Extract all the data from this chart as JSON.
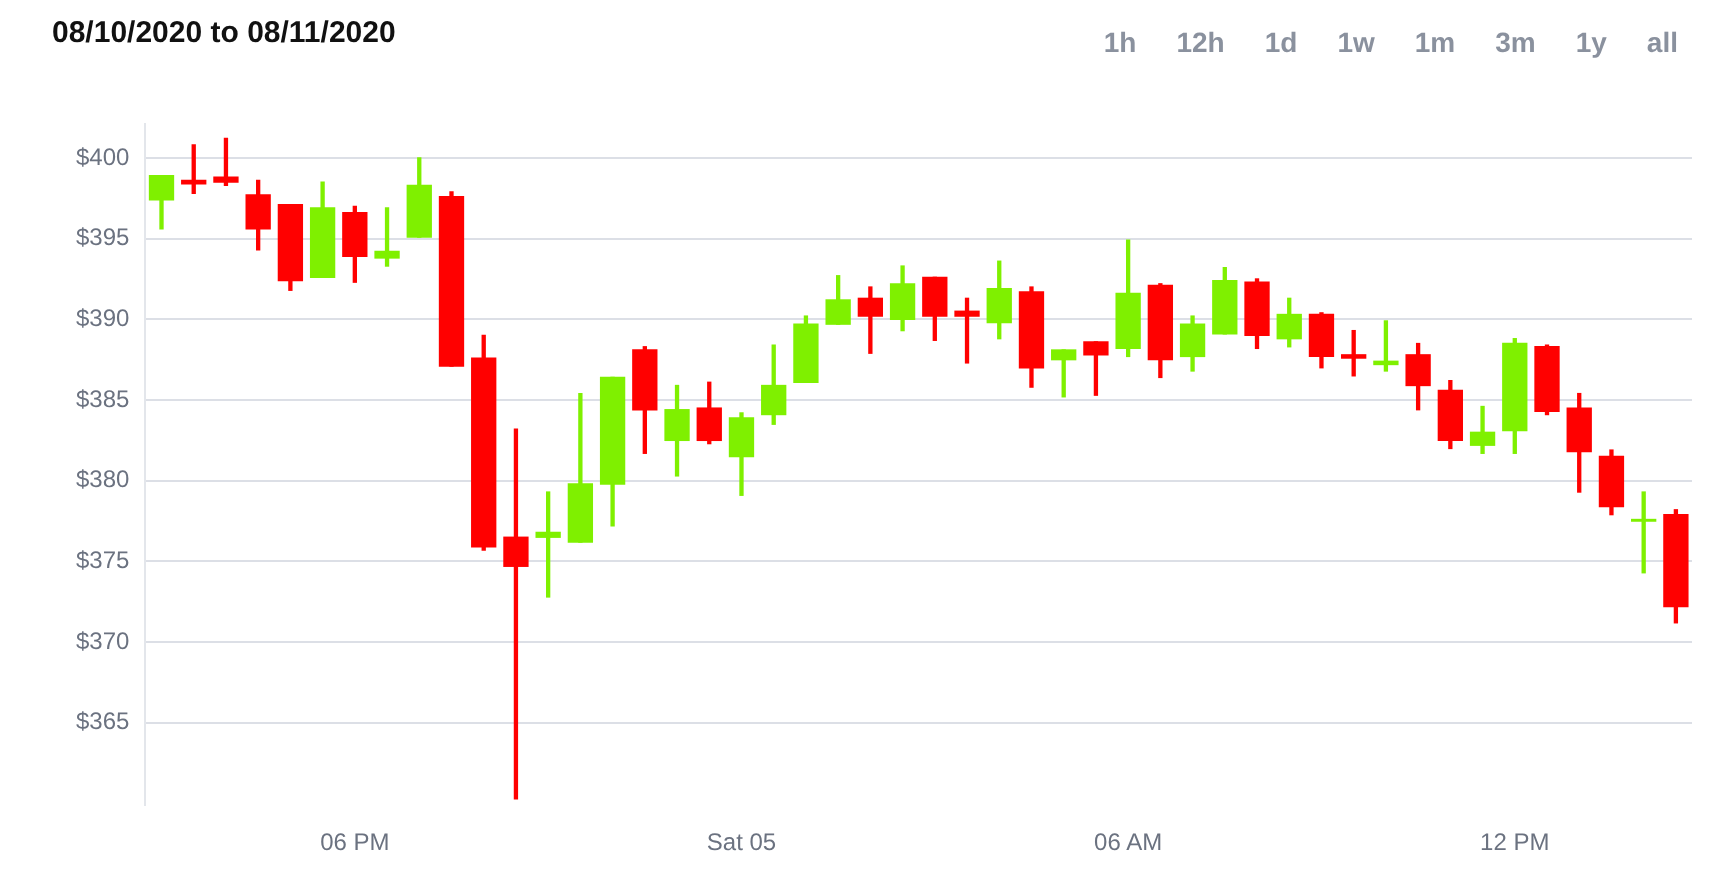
{
  "chart_data": {
    "type": "candlestick",
    "title": "08/10/2020 to 08/11/2020",
    "annotations": [
      "1h",
      "12h",
      "1d",
      "1w",
      "1m",
      "3m",
      "1y",
      "all"
    ],
    "categories": [
      null,
      null,
      null,
      null,
      null,
      null,
      "06 PM",
      null,
      null,
      null,
      null,
      null,
      null,
      null,
      null,
      null,
      null,
      null,
      "Sat 05",
      null,
      null,
      null,
      null,
      null,
      null,
      null,
      null,
      null,
      null,
      null,
      "06 AM",
      null,
      null,
      null,
      null,
      null,
      null,
      null,
      null,
      null,
      null,
      null,
      "12 PM",
      null,
      null,
      null,
      null,
      null
    ],
    "ohlc": [
      [
        397.4,
        398.9,
        395.6,
        398.9
      ],
      [
        398.6,
        400.8,
        397.8,
        398.4
      ],
      [
        398.8,
        401.2,
        398.3,
        398.5
      ],
      [
        397.7,
        398.6,
        394.3,
        395.6
      ],
      [
        397.1,
        397.1,
        391.8,
        392.4
      ],
      [
        392.6,
        398.5,
        392.6,
        396.9
      ],
      [
        396.6,
        397.0,
        392.3,
        393.9
      ],
      [
        393.8,
        396.9,
        393.3,
        394.2
      ],
      [
        395.1,
        400.0,
        395.1,
        398.3
      ],
      [
        397.6,
        397.9,
        387.1,
        387.1
      ],
      [
        387.6,
        389.0,
        375.7,
        375.9
      ],
      [
        376.5,
        383.2,
        360.3,
        374.7
      ],
      [
        376.5,
        379.3,
        372.8,
        376.8
      ],
      [
        376.2,
        385.4,
        376.2,
        379.8
      ],
      [
        379.8,
        386.4,
        377.2,
        386.4
      ],
      [
        388.1,
        388.3,
        381.7,
        384.4
      ],
      [
        382.5,
        385.9,
        380.3,
        384.4
      ],
      [
        384.5,
        386.1,
        382.3,
        382.5
      ],
      [
        381.5,
        384.2,
        379.1,
        383.9
      ],
      [
        384.1,
        388.4,
        383.5,
        385.9
      ],
      [
        386.1,
        390.2,
        386.1,
        389.7
      ],
      [
        389.7,
        392.7,
        389.7,
        391.2
      ],
      [
        391.3,
        392.0,
        387.9,
        390.2
      ],
      [
        390.0,
        393.3,
        389.3,
        392.2
      ],
      [
        392.6,
        392.6,
        388.7,
        390.2
      ],
      [
        390.5,
        391.3,
        387.3,
        390.2
      ],
      [
        389.8,
        393.6,
        388.8,
        391.9
      ],
      [
        391.7,
        392.0,
        385.8,
        387.0
      ],
      [
        387.5,
        388.1,
        385.2,
        388.1
      ],
      [
        388.6,
        388.6,
        385.3,
        387.8
      ],
      [
        388.2,
        394.9,
        387.7,
        391.6
      ],
      [
        392.1,
        392.2,
        386.4,
        387.5
      ],
      [
        387.7,
        390.2,
        386.8,
        389.7
      ],
      [
        389.1,
        393.2,
        389.1,
        392.4
      ],
      [
        392.3,
        392.5,
        388.2,
        389.0
      ],
      [
        388.8,
        391.3,
        388.3,
        390.3
      ],
      [
        390.3,
        390.4,
        387.0,
        387.7
      ],
      [
        387.8,
        389.3,
        386.5,
        387.6
      ],
      [
        387.2,
        389.9,
        386.8,
        387.4
      ],
      [
        387.8,
        388.5,
        384.4,
        385.9
      ],
      [
        385.6,
        386.2,
        382.0,
        382.5
      ],
      [
        382.2,
        384.6,
        381.7,
        383.0
      ],
      [
        383.1,
        388.8,
        381.7,
        388.5
      ],
      [
        388.3,
        388.4,
        384.1,
        384.3
      ],
      [
        384.5,
        385.4,
        379.3,
        381.8
      ],
      [
        381.5,
        381.9,
        377.9,
        378.4
      ],
      [
        377.5,
        379.3,
        374.3,
        377.6
      ],
      [
        377.9,
        378.2,
        371.2,
        372.2
      ]
    ],
    "ylim": [
      359.9,
      402.1
    ],
    "yticks": [
      {
        "value": 365,
        "label": "$365"
      },
      {
        "value": 370,
        "label": "$370"
      },
      {
        "value": 375,
        "label": "$375"
      },
      {
        "value": 380,
        "label": "$380"
      },
      {
        "value": 385,
        "label": "$385"
      },
      {
        "value": 390,
        "label": "$390"
      },
      {
        "value": 395,
        "label": "$395"
      },
      {
        "value": 400,
        "label": "$400"
      }
    ],
    "grid": "y",
    "legend": false
  }
}
